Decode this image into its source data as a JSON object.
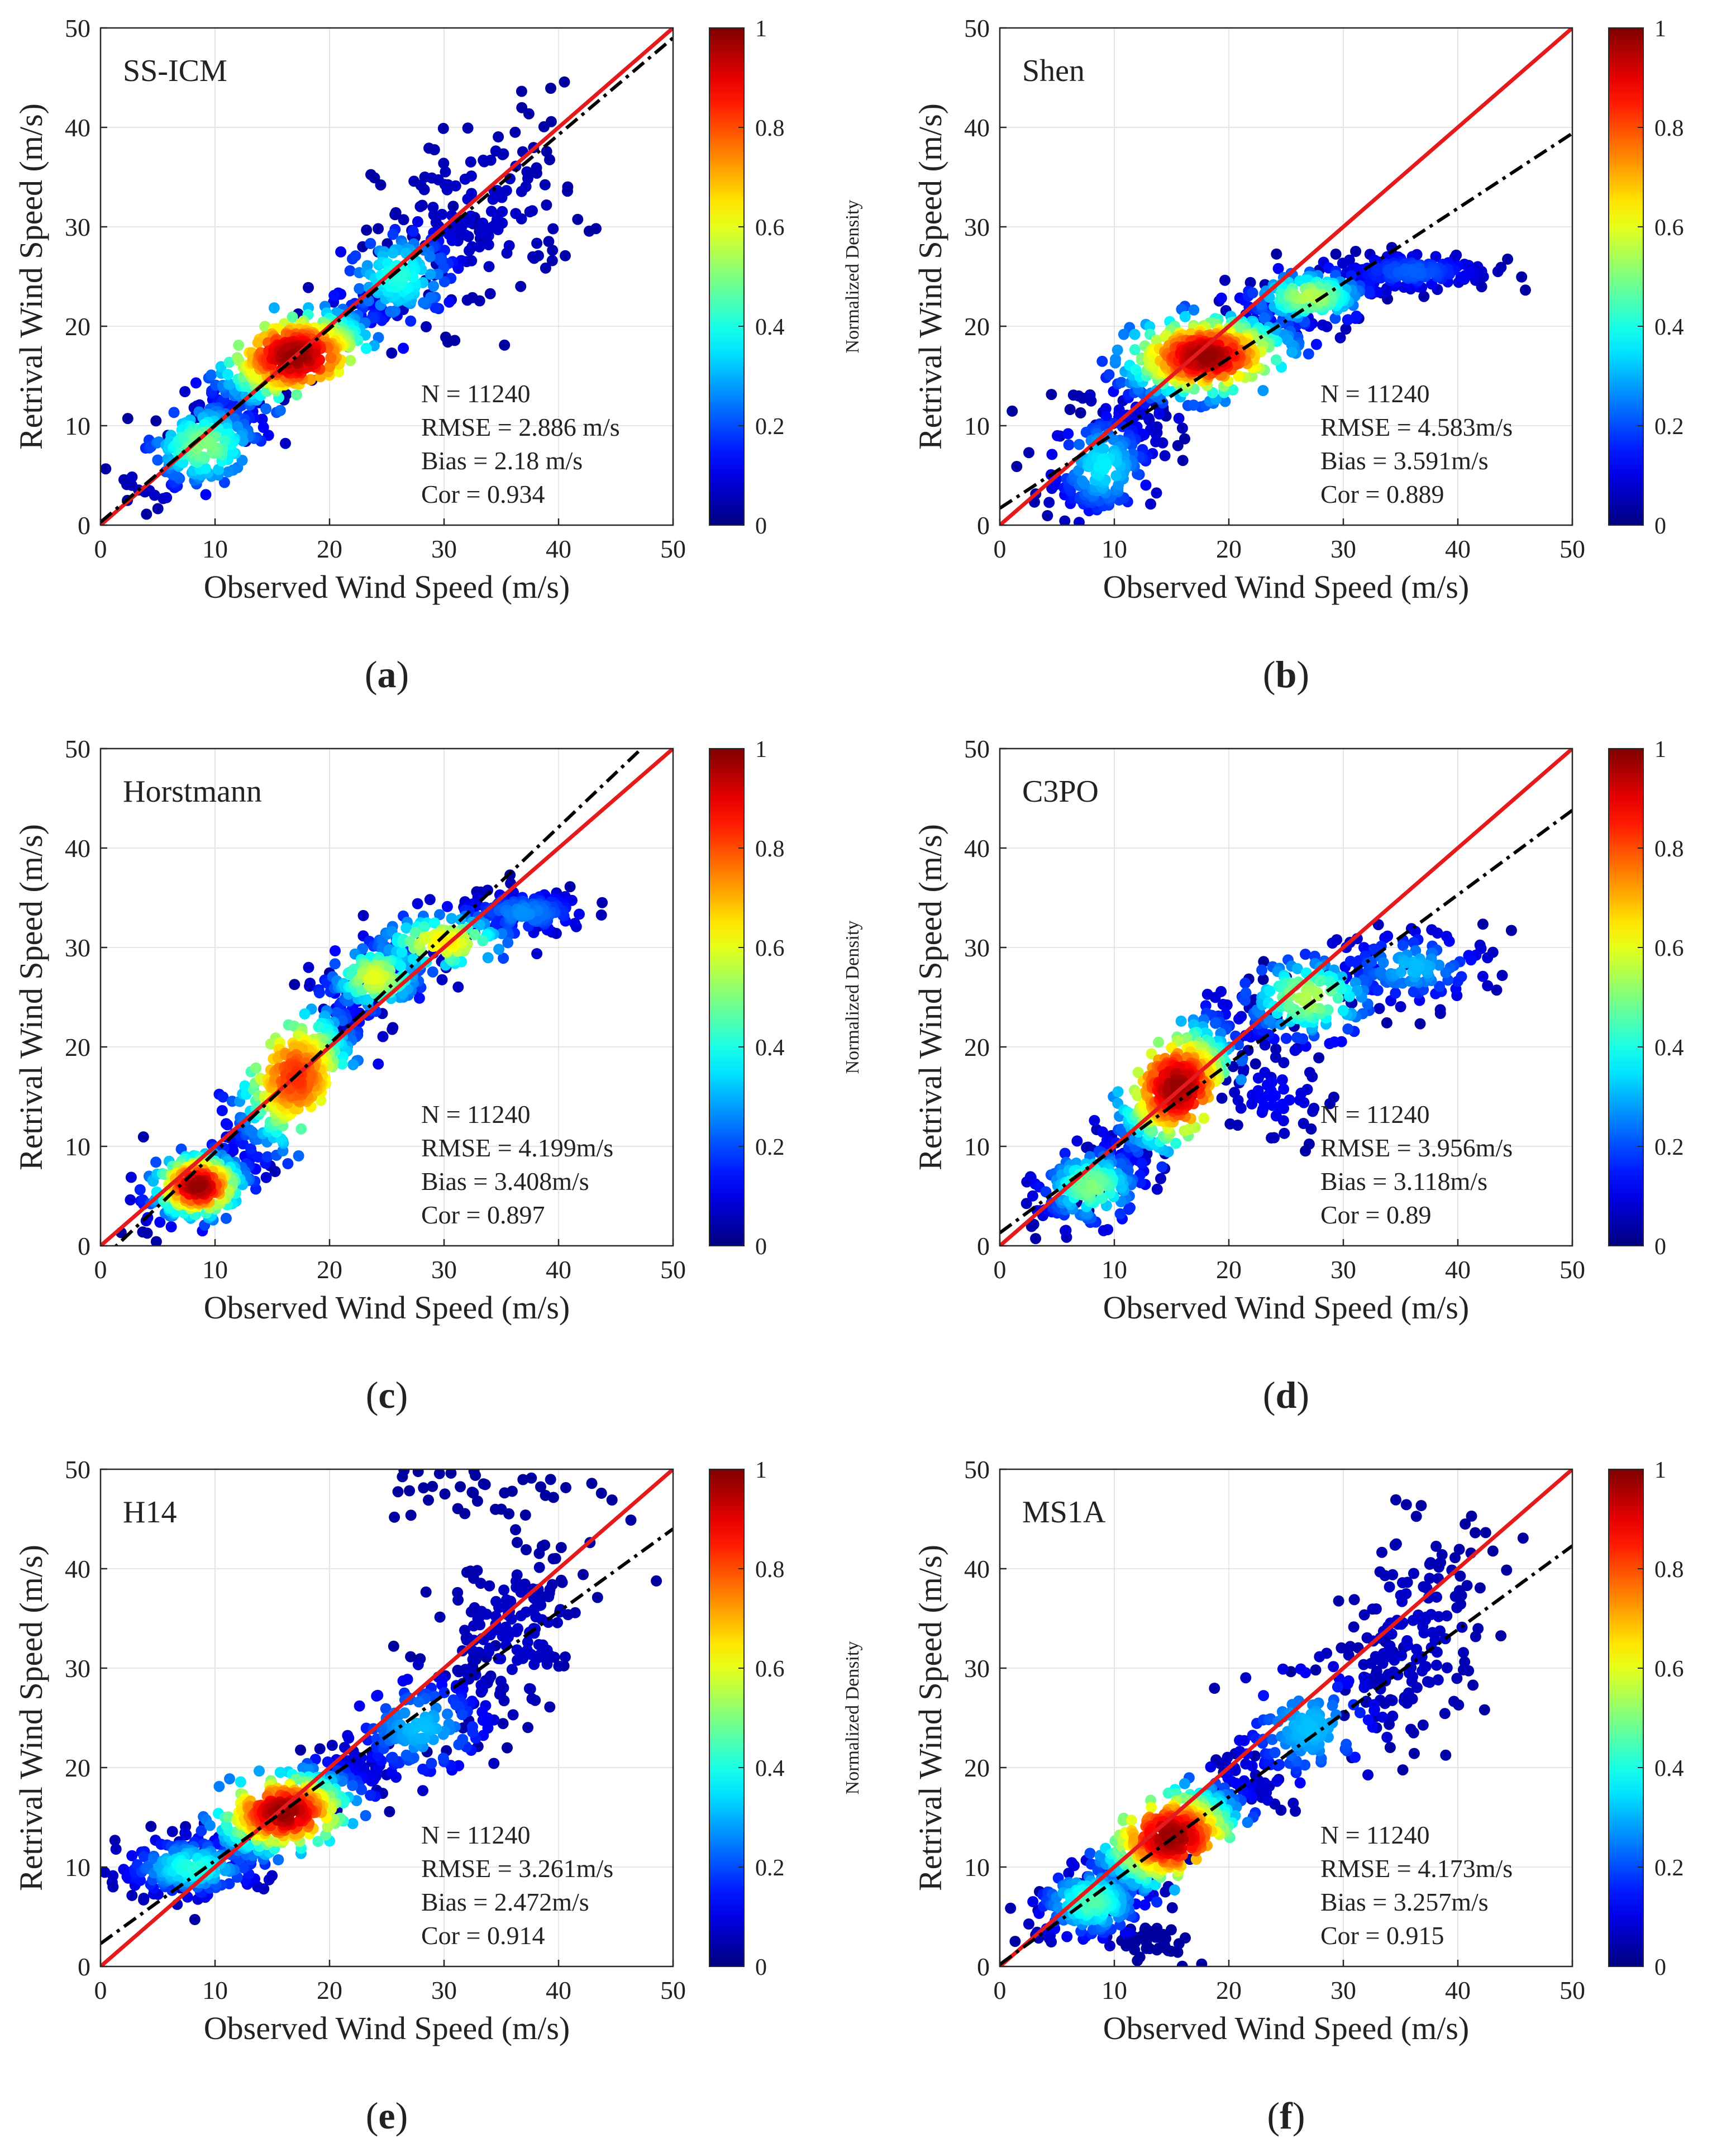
{
  "colorbar": {
    "title": "Normalized Density",
    "ticks": [
      0,
      0.2,
      0.4,
      0.6,
      0.8,
      1
    ],
    "tick_labels": [
      "0",
      "0.2",
      "0.4",
      "0.6",
      "0.8",
      "1"
    ],
    "colormap": [
      "#00007f",
      "#0000ff",
      "#007fff",
      "#00ffff",
      "#7fff7f",
      "#ffff00",
      "#ff7f00",
      "#ff0000",
      "#7f0000"
    ]
  },
  "colors": {
    "one_to_one_line": "#e41a1c",
    "fit_line": "#000000",
    "point_low": "#1515c8"
  },
  "chart_data": [
    {
      "type": "scatter",
      "caption_open": "(",
      "caption_letter": "a",
      "caption_close": ")",
      "method": "SS-ICM",
      "xlabel": "Observed Wind Speed (m/s)",
      "ylabel": "Retrival Wind Speed (m/s)",
      "xlim": [
        0,
        50
      ],
      "ylim": [
        0,
        50
      ],
      "xticks": [
        "0",
        "10",
        "20",
        "30",
        "40",
        "50"
      ],
      "yticks": [
        "0",
        "10",
        "20",
        "30",
        "40",
        "50"
      ],
      "grid": true,
      "stats": [
        "N = 11240",
        "RMSE = 2.886 m/s",
        "Bias = 2.18 m/s",
        "Cor = 0.934"
      ],
      "one_to_one_line": [
        [
          0,
          0
        ],
        [
          50,
          50
        ]
      ],
      "fit_line": [
        [
          0,
          0.3
        ],
        [
          50,
          49
        ]
      ],
      "density_clusters": [
        {
          "x": 17,
          "y": 17,
          "sx": 4.2,
          "sy": 3.0,
          "rho": 0.8,
          "n": 420,
          "dmax": 1.0
        },
        {
          "x": 9,
          "y": 8,
          "sx": 3.0,
          "sy": 2.6,
          "rho": 0.6,
          "n": 220,
          "dmax": 0.5
        },
        {
          "x": 26,
          "y": 25,
          "sx": 3.0,
          "sy": 3.0,
          "rho": 0.5,
          "n": 160,
          "dmax": 0.4
        },
        {
          "x": 33,
          "y": 31,
          "sx": 4.5,
          "sy": 5.5,
          "rho": 0.3,
          "n": 150,
          "dmax": 0.05
        }
      ]
    },
    {
      "type": "scatter",
      "caption_open": "(",
      "caption_letter": "b",
      "caption_close": ")",
      "method": "Shen",
      "xlabel": "Observed Wind Speed (m/s)",
      "ylabel": "Retrival Wind Speed (m/s)",
      "xlim": [
        0,
        50
      ],
      "ylim": [
        0,
        50
      ],
      "xticks": [
        "0",
        "10",
        "20",
        "30",
        "40",
        "50"
      ],
      "yticks": [
        "0",
        "10",
        "20",
        "30",
        "40",
        "50"
      ],
      "grid": true,
      "stats": [
        "N = 11240",
        "RMSE = 4.583m/s",
        "Bias = 3.591m/s",
        "Cor = 0.889"
      ],
      "one_to_one_line": [
        [
          0,
          0
        ],
        [
          50,
          50
        ]
      ],
      "fit_line": [
        [
          0,
          1.7
        ],
        [
          50,
          39.4
        ]
      ],
      "density_clusters": [
        {
          "x": 18,
          "y": 17,
          "sx": 4.5,
          "sy": 2.6,
          "rho": 0.6,
          "n": 440,
          "dmax": 1.0
        },
        {
          "x": 9,
          "y": 6,
          "sx": 2.5,
          "sy": 3.0,
          "rho": 0.4,
          "n": 200,
          "dmax": 0.35
        },
        {
          "x": 27,
          "y": 23,
          "sx": 3.0,
          "sy": 1.6,
          "rho": 0.3,
          "n": 160,
          "dmax": 0.55
        },
        {
          "x": 36,
          "y": 25.5,
          "sx": 3.5,
          "sy": 1.0,
          "rho": 0.1,
          "n": 170,
          "dmax": 0.2
        }
      ]
    },
    {
      "type": "scatter",
      "caption_open": "(",
      "caption_letter": "c",
      "caption_close": ")",
      "method": "Horstmann",
      "xlabel": "Observed Wind Speed (m/s)",
      "ylabel": "Retrival Wind Speed (m/s)",
      "xlim": [
        0,
        50
      ],
      "ylim": [
        0,
        50
      ],
      "xticks": [
        "0",
        "10",
        "20",
        "30",
        "40",
        "50"
      ],
      "yticks": [
        "0",
        "10",
        "20",
        "30",
        "40",
        "50"
      ],
      "grid": true,
      "stats": [
        "N = 11240",
        "RMSE = 4.199m/s",
        "Bias = 3.408m/s",
        "Cor = 0.897"
      ],
      "one_to_one_line": [
        [
          0,
          0
        ],
        [
          50,
          50
        ]
      ],
      "fit_line": [
        [
          0,
          -1.5
        ],
        [
          50,
          53
        ]
      ],
      "density_clusters": [
        {
          "x": 8.5,
          "y": 6,
          "sx": 2.4,
          "sy": 2.0,
          "rho": 0.4,
          "n": 260,
          "dmax": 1.0
        },
        {
          "x": 17,
          "y": 17,
          "sx": 3.2,
          "sy": 4.5,
          "rho": 0.8,
          "n": 360,
          "dmax": 0.85
        },
        {
          "x": 24,
          "y": 27,
          "sx": 2.4,
          "sy": 2.0,
          "rho": 0.4,
          "n": 160,
          "dmax": 0.6
        },
        {
          "x": 30,
          "y": 30.5,
          "sx": 3.5,
          "sy": 1.8,
          "rho": 0.3,
          "n": 140,
          "dmax": 0.65
        },
        {
          "x": 37,
          "y": 33.5,
          "sx": 3.0,
          "sy": 1.2,
          "rho": 0.2,
          "n": 130,
          "dmax": 0.25
        }
      ]
    },
    {
      "type": "scatter",
      "caption_open": "(",
      "caption_letter": "d",
      "caption_close": ")",
      "method": "C3PO",
      "xlabel": "Observed Wind Speed (m/s)",
      "ylabel": "Retrival Wind Speed (m/s)",
      "xlim": [
        0,
        50
      ],
      "ylim": [
        0,
        50
      ],
      "xticks": [
        "0",
        "10",
        "20",
        "30",
        "40",
        "50"
      ],
      "yticks": [
        "0",
        "10",
        "20",
        "30",
        "40",
        "50"
      ],
      "grid": true,
      "stats": [
        "N = 11240",
        "RMSE = 3.956m/s",
        "Bias = 3.118m/s",
        "Cor = 0.89"
      ],
      "one_to_one_line": [
        [
          0,
          0
        ],
        [
          50,
          50
        ]
      ],
      "fit_line": [
        [
          0,
          1.3
        ],
        [
          50,
          43.8
        ]
      ],
      "density_clusters": [
        {
          "x": 15.5,
          "y": 16,
          "sx": 3.2,
          "sy": 4.0,
          "rho": 0.8,
          "n": 420,
          "dmax": 1.0
        },
        {
          "x": 8,
          "y": 6,
          "sx": 2.5,
          "sy": 2.2,
          "rho": 0.4,
          "n": 200,
          "dmax": 0.5
        },
        {
          "x": 27,
          "y": 25,
          "sx": 3.5,
          "sy": 2.5,
          "rho": 0.4,
          "n": 160,
          "dmax": 0.55
        },
        {
          "x": 36,
          "y": 28,
          "sx": 3.5,
          "sy": 2.0,
          "rho": 0.2,
          "n": 130,
          "dmax": 0.3
        },
        {
          "x": 24,
          "y": 15,
          "sx": 2.5,
          "sy": 2.5,
          "rho": 0.0,
          "n": 60,
          "dmax": 0.1
        }
      ]
    },
    {
      "type": "scatter",
      "caption_open": "(",
      "caption_letter": "e",
      "caption_close": ")",
      "method": "H14",
      "xlabel": "Observed Wind Speed (m/s)",
      "ylabel": "Retrival Wind Speed (m/s)",
      "xlim": [
        0,
        50
      ],
      "ylim": [
        0,
        50
      ],
      "xticks": [
        "0",
        "10",
        "20",
        "30",
        "40",
        "50"
      ],
      "yticks": [
        "0",
        "10",
        "20",
        "30",
        "40",
        "50"
      ],
      "grid": true,
      "stats": [
        "N = 11240",
        "RMSE = 3.261m/s",
        "Bias = 2.472m/s",
        "Cor = 0.914"
      ],
      "one_to_one_line": [
        [
          0,
          0
        ],
        [
          50,
          50
        ]
      ],
      "fit_line": [
        [
          0,
          2.3
        ],
        [
          50,
          44
        ]
      ],
      "density_clusters": [
        {
          "x": 16,
          "y": 15.5,
          "sx": 3.8,
          "sy": 2.6,
          "rho": 0.7,
          "n": 420,
          "dmax": 1.0
        },
        {
          "x": 8,
          "y": 10,
          "sx": 3.2,
          "sy": 1.6,
          "rho": 0.2,
          "n": 220,
          "dmax": 0.4
        },
        {
          "x": 28,
          "y": 24,
          "sx": 3.5,
          "sy": 3.0,
          "rho": 0.5,
          "n": 180,
          "dmax": 0.3
        },
        {
          "x": 36,
          "y": 33,
          "sx": 3.5,
          "sy": 5.0,
          "rho": 0.3,
          "n": 160,
          "dmax": 0.05
        },
        {
          "x": 32,
          "y": 48,
          "sx": 6.0,
          "sy": 1.5,
          "rho": 0.0,
          "n": 40,
          "dmax": 0.0
        }
      ]
    },
    {
      "type": "scatter",
      "caption_open": "(",
      "caption_letter": "f",
      "caption_close": ")",
      "method": "MS1A",
      "xlabel": "Observed Wind Speed (m/s)",
      "ylabel": "Retrival Wind Speed (m/s)",
      "xlim": [
        0,
        50
      ],
      "ylim": [
        0,
        50
      ],
      "xticks": [
        "0",
        "10",
        "20",
        "30",
        "40",
        "50"
      ],
      "yticks": [
        "0",
        "10",
        "20",
        "30",
        "40",
        "50"
      ],
      "grid": true,
      "stats": [
        "N = 11240",
        "RMSE = 4.173m/s",
        "Bias = 3.257m/s",
        "Cor = 0.915"
      ],
      "one_to_one_line": [
        [
          0,
          0
        ],
        [
          50,
          50
        ]
      ],
      "fit_line": [
        [
          0,
          0.2
        ],
        [
          50,
          42.3
        ]
      ],
      "density_clusters": [
        {
          "x": 15,
          "y": 13,
          "sx": 3.8,
          "sy": 3.2,
          "rho": 0.8,
          "n": 440,
          "dmax": 1.0
        },
        {
          "x": 8,
          "y": 6.5,
          "sx": 2.6,
          "sy": 2.0,
          "rho": 0.3,
          "n": 200,
          "dmax": 0.45
        },
        {
          "x": 27,
          "y": 24,
          "sx": 3.5,
          "sy": 3.5,
          "rho": 0.6,
          "n": 170,
          "dmax": 0.3
        },
        {
          "x": 36,
          "y": 33,
          "sx": 3.5,
          "sy": 6.0,
          "rho": 0.3,
          "n": 170,
          "dmax": 0.05
        },
        {
          "x": 13,
          "y": 2.5,
          "sx": 2.0,
          "sy": 1.0,
          "rho": 0.0,
          "n": 50,
          "dmax": 0.0
        }
      ]
    }
  ]
}
